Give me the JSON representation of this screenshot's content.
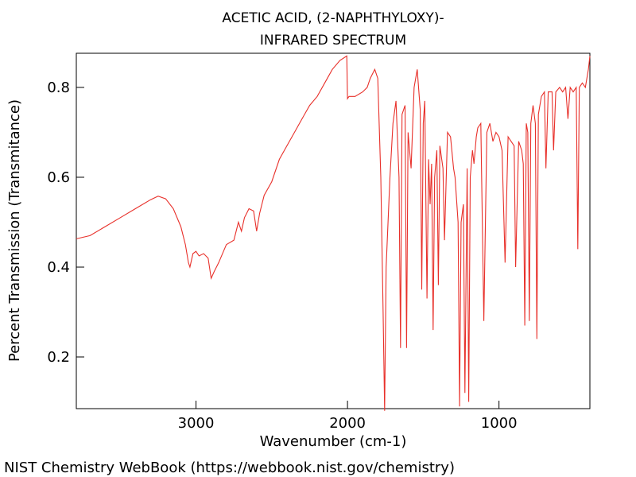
{
  "chart_data": {
    "type": "line",
    "title": "ACETIC ACID, (2-NAPHTHYLOXY)-",
    "subtitle": "INFRARED SPECTRUM",
    "x_label": "Wavenumber (cm-1)",
    "y_label": "Percent Transmission (Transmitance)",
    "footer": "NIST Chemistry WebBook (https://webbook.nist.gov/chemistry)",
    "xlim": [
      3790,
      400
    ],
    "xticks": [
      3000,
      2000,
      1000
    ],
    "ylim": [
      0.085,
      0.876
    ],
    "yticks": [
      0.2,
      0.4,
      0.6,
      0.8
    ],
    "series": [
      {
        "color": "#e8302a",
        "x": [
          3790,
          3700,
          3600,
          3500,
          3400,
          3300,
          3250,
          3200,
          3150,
          3100,
          3070,
          3050,
          3040,
          3020,
          3000,
          2980,
          2950,
          2920,
          2900,
          2880,
          2850,
          2800,
          2750,
          2720,
          2700,
          2680,
          2650,
          2620,
          2600,
          2580,
          2550,
          2500,
          2450,
          2400,
          2350,
          2300,
          2250,
          2200,
          2150,
          2100,
          2050,
          2005,
          2000,
          1990,
          1950,
          1900,
          1870,
          1850,
          1820,
          1800,
          1780,
          1765,
          1755,
          1745,
          1720,
          1700,
          1680,
          1660,
          1650,
          1640,
          1620,
          1610,
          1600,
          1580,
          1560,
          1540,
          1520,
          1510,
          1500,
          1490,
          1475,
          1465,
          1455,
          1445,
          1435,
          1425,
          1410,
          1400,
          1390,
          1370,
          1360,
          1340,
          1320,
          1300,
          1290,
          1270,
          1260,
          1250,
          1235,
          1225,
          1210,
          1200,
          1190,
          1175,
          1165,
          1150,
          1140,
          1120,
          1100,
          1080,
          1060,
          1040,
          1020,
          1000,
          980,
          960,
          940,
          920,
          900,
          890,
          870,
          850,
          840,
          830,
          820,
          810,
          800,
          790,
          775,
          760,
          750,
          740,
          720,
          700,
          690,
          675,
          650,
          640,
          625,
          600,
          580,
          560,
          545,
          530,
          510,
          490,
          480,
          470,
          450,
          430,
          410,
          400
        ],
        "values": [
          0.463,
          0.47,
          0.49,
          0.51,
          0.53,
          0.55,
          0.558,
          0.552,
          0.53,
          0.49,
          0.45,
          0.41,
          0.4,
          0.43,
          0.435,
          0.425,
          0.43,
          0.42,
          0.375,
          0.39,
          0.41,
          0.45,
          0.46,
          0.5,
          0.48,
          0.51,
          0.53,
          0.525,
          0.48,
          0.52,
          0.56,
          0.59,
          0.64,
          0.67,
          0.7,
          0.73,
          0.76,
          0.78,
          0.81,
          0.84,
          0.86,
          0.87,
          0.775,
          0.78,
          0.78,
          0.79,
          0.8,
          0.82,
          0.84,
          0.82,
          0.6,
          0.3,
          0.08,
          0.4,
          0.6,
          0.72,
          0.77,
          0.6,
          0.22,
          0.74,
          0.76,
          0.22,
          0.7,
          0.62,
          0.8,
          0.84,
          0.75,
          0.35,
          0.72,
          0.77,
          0.33,
          0.64,
          0.54,
          0.63,
          0.26,
          0.6,
          0.66,
          0.36,
          0.67,
          0.62,
          0.46,
          0.7,
          0.69,
          0.62,
          0.6,
          0.5,
          0.09,
          0.5,
          0.54,
          0.12,
          0.62,
          0.1,
          0.6,
          0.66,
          0.63,
          0.69,
          0.71,
          0.72,
          0.28,
          0.7,
          0.72,
          0.68,
          0.7,
          0.69,
          0.66,
          0.41,
          0.69,
          0.68,
          0.67,
          0.4,
          0.68,
          0.66,
          0.63,
          0.27,
          0.72,
          0.7,
          0.28,
          0.72,
          0.76,
          0.72,
          0.24,
          0.74,
          0.78,
          0.79,
          0.62,
          0.79,
          0.79,
          0.66,
          0.79,
          0.8,
          0.79,
          0.8,
          0.73,
          0.8,
          0.79,
          0.8,
          0.44,
          0.8,
          0.81,
          0.8,
          0.84,
          0.87
        ]
      }
    ]
  }
}
